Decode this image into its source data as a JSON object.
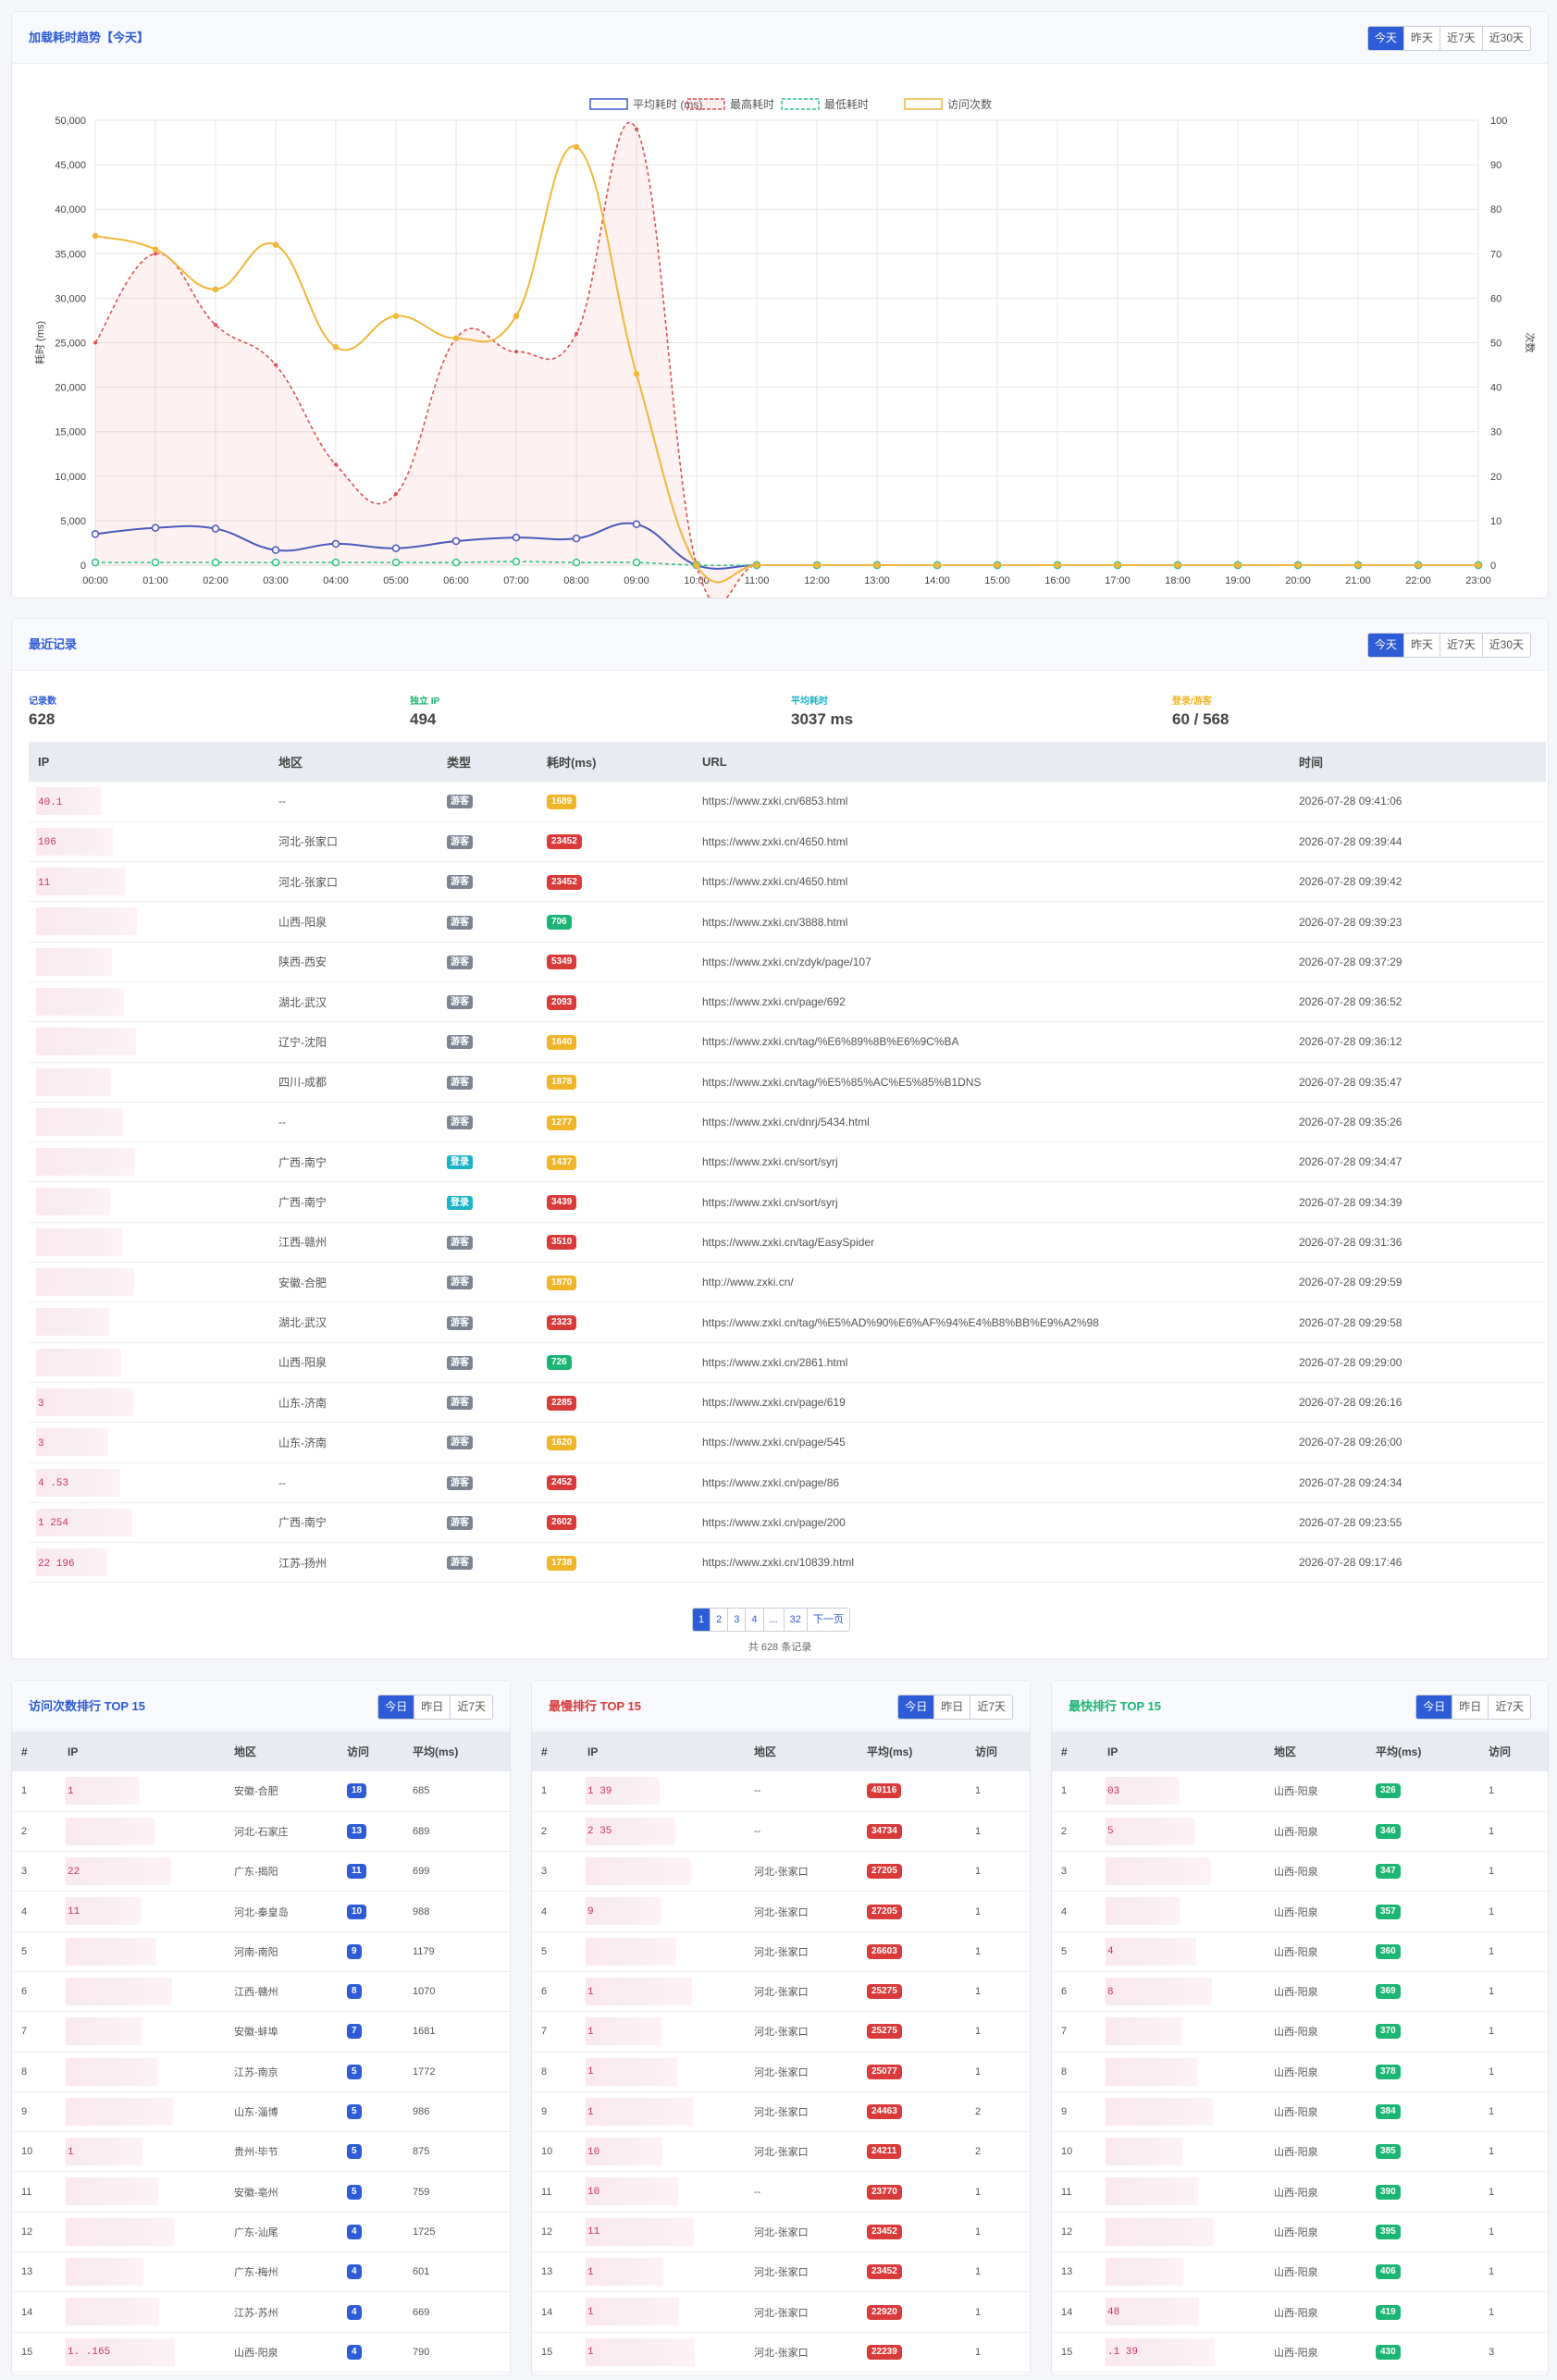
{
  "colors": {
    "accent": "#2e5bd6",
    "red": "#d93a3a",
    "yellow": "#f1b52a",
    "green": "#1cb574",
    "teal": "#1bb3c8"
  },
  "trend": {
    "title": "加载耗时趋势【今天】",
    "range_buttons": [
      "今天",
      "昨天",
      "近7天",
      "近30天"
    ],
    "active_range": "今天"
  },
  "chart_data": {
    "type": "line",
    "x": [
      "00:00",
      "01:00",
      "02:00",
      "03:00",
      "04:00",
      "05:00",
      "06:00",
      "07:00",
      "08:00",
      "09:00",
      "10:00",
      "11:00",
      "12:00",
      "13:00",
      "14:00",
      "15:00",
      "16:00",
      "17:00",
      "18:00",
      "19:00",
      "20:00",
      "21:00",
      "22:00",
      "23:00"
    ],
    "ylabel": "耗时 (ms)",
    "y2label": "次数",
    "ylim": [
      0,
      50000
    ],
    "y2lim": [
      0,
      100
    ],
    "yticks": [
      "0",
      "5,000",
      "10,000",
      "15,000",
      "20,000",
      "25,000",
      "30,000",
      "35,000",
      "40,000",
      "45,000",
      "50,000"
    ],
    "y2ticks": [
      "0",
      "10",
      "20",
      "30",
      "40",
      "50",
      "60",
      "70",
      "80",
      "90",
      "100"
    ],
    "grid": true,
    "legend_position": "top-center",
    "series": [
      {
        "name": "平均耗时 (ms)",
        "axis": "left",
        "style": "solid",
        "color": "#3d5cc7",
        "values": [
          3500,
          4200,
          4100,
          1700,
          2400,
          1900,
          2700,
          3100,
          3000,
          4600,
          0,
          0,
          0,
          0,
          0,
          0,
          0,
          0,
          0,
          0,
          0,
          0,
          0,
          0
        ]
      },
      {
        "name": "最高耗时",
        "axis": "left",
        "style": "dashed",
        "fill": true,
        "color": "#e05050",
        "values": [
          25000,
          35000,
          27000,
          22500,
          11300,
          8000,
          25500,
          24000,
          26000,
          49000,
          0,
          0,
          0,
          0,
          0,
          0,
          0,
          0,
          0,
          0,
          0,
          0,
          0,
          0
        ]
      },
      {
        "name": "最低耗时",
        "axis": "left",
        "style": "dashed",
        "color": "#2ec48a",
        "values": [
          300,
          300,
          300,
          300,
          300,
          300,
          300,
          400,
          300,
          300,
          0,
          0,
          0,
          0,
          0,
          0,
          0,
          0,
          0,
          0,
          0,
          0,
          0,
          0
        ]
      },
      {
        "name": "访问次数",
        "axis": "right",
        "style": "solid",
        "color": "#f2b63a",
        "values": [
          74,
          71,
          62,
          72,
          49,
          56,
          51,
          56,
          94,
          43,
          0,
          0,
          0,
          0,
          0,
          0,
          0,
          0,
          0,
          0,
          0,
          0,
          0,
          0
        ]
      }
    ]
  },
  "recent": {
    "title": "最近记录",
    "range_buttons": [
      "今天",
      "昨天",
      "近7天",
      "近30天"
    ],
    "stats": [
      {
        "label": "记录数",
        "value": "628",
        "color": "#2e5bd6"
      },
      {
        "label": "独立 IP",
        "value": "494",
        "color": "#1cb574"
      },
      {
        "label": "平均耗时",
        "value": "3037 ms",
        "color": "#1bb3c8"
      },
      {
        "label": "登录/游客",
        "value": "60 / 568",
        "color": "#f1b52a"
      }
    ],
    "columns": [
      "IP",
      "地区",
      "类型",
      "耗时(ms)",
      "URL",
      "时间"
    ],
    "rows": [
      {
        "ip": "40.1",
        "region": "--",
        "type": "游客",
        "ms": "1689",
        "lvl": "yellow",
        "url": "https://www.zxki.cn/6853.html",
        "time": "2026-07-28 09:41:06"
      },
      {
        "ip": "106",
        "region": "河北-张家口",
        "type": "游客",
        "ms": "23452",
        "lvl": "red",
        "url": "https://www.zxki.cn/4650.html",
        "time": "2026-07-28 09:39:44"
      },
      {
        "ip": "11",
        "region": "河北-张家口",
        "type": "游客",
        "ms": "23452",
        "lvl": "red",
        "url": "https://www.zxki.cn/4650.html",
        "time": "2026-07-28 09:39:42"
      },
      {
        "ip": "",
        "region": "山西-阳泉",
        "type": "游客",
        "ms": "706",
        "lvl": "green",
        "url": "https://www.zxki.cn/3888.html",
        "time": "2026-07-28 09:39:23"
      },
      {
        "ip": "",
        "region": "陕西-西安",
        "type": "游客",
        "ms": "5349",
        "lvl": "red",
        "url": "https://www.zxki.cn/zdyk/page/107",
        "time": "2026-07-28 09:37:29"
      },
      {
        "ip": "",
        "region": "湖北-武汉",
        "type": "游客",
        "ms": "2093",
        "lvl": "red",
        "url": "https://www.zxki.cn/page/692",
        "time": "2026-07-28 09:36:52"
      },
      {
        "ip": "",
        "region": "辽宁-沈阳",
        "type": "游客",
        "ms": "1640",
        "lvl": "yellow",
        "url": "https://www.zxki.cn/tag/%E6%89%8B%E6%9C%BA",
        "time": "2026-07-28 09:36:12"
      },
      {
        "ip": "",
        "region": "四川-成都",
        "type": "游客",
        "ms": "1878",
        "lvl": "yellow",
        "url": "https://www.zxki.cn/tag/%E5%85%AC%E5%85%B1DNS",
        "time": "2026-07-28 09:35:47"
      },
      {
        "ip": "",
        "region": "--",
        "type": "游客",
        "ms": "1277",
        "lvl": "yellow",
        "url": "https://www.zxki.cn/dnrj/5434.html",
        "time": "2026-07-28 09:35:26"
      },
      {
        "ip": "",
        "region": "广西-南宁",
        "type": "登录",
        "ms": "1437",
        "lvl": "yellow",
        "url": "https://www.zxki.cn/sort/syrj",
        "time": "2026-07-28 09:34:47"
      },
      {
        "ip": "",
        "region": "广西-南宁",
        "type": "登录",
        "ms": "3439",
        "lvl": "red",
        "url": "https://www.zxki.cn/sort/syrj",
        "time": "2026-07-28 09:34:39"
      },
      {
        "ip": "",
        "region": "江西-赣州",
        "type": "游客",
        "ms": "3510",
        "lvl": "red",
        "url": "https://www.zxki.cn/tag/EasySpider",
        "time": "2026-07-28 09:31:36"
      },
      {
        "ip": "",
        "region": "安徽-合肥",
        "type": "游客",
        "ms": "1870",
        "lvl": "yellow",
        "url": "http://www.zxki.cn/",
        "time": "2026-07-28 09:29:59"
      },
      {
        "ip": "",
        "region": "湖北-武汉",
        "type": "游客",
        "ms": "2323",
        "lvl": "red",
        "url": "https://www.zxki.cn/tag/%E5%AD%90%E6%AF%94%E4%B8%BB%E9%A2%98",
        "time": "2026-07-28 09:29:58"
      },
      {
        "ip": "",
        "region": "山西-阳泉",
        "type": "游客",
        "ms": "726",
        "lvl": "green",
        "url": "https://www.zxki.cn/2861.html",
        "time": "2026-07-28 09:29:00"
      },
      {
        "ip": "3",
        "region": "山东-济南",
        "type": "游客",
        "ms": "2285",
        "lvl": "red",
        "url": "https://www.zxki.cn/page/619",
        "time": "2026-07-28 09:26:16"
      },
      {
        "ip": "3",
        "region": "山东-济南",
        "type": "游客",
        "ms": "1620",
        "lvl": "yellow",
        "url": "https://www.zxki.cn/page/545",
        "time": "2026-07-28 09:26:00"
      },
      {
        "ip": "4 .53",
        "region": "--",
        "type": "游客",
        "ms": "2452",
        "lvl": "red",
        "url": "https://www.zxki.cn/page/86",
        "time": "2026-07-28 09:24:34"
      },
      {
        "ip": "1 254",
        "region": "广西-南宁",
        "type": "游客",
        "ms": "2602",
        "lvl": "red",
        "url": "https://www.zxki.cn/page/200",
        "time": "2026-07-28 09:23:55"
      },
      {
        "ip": "22 196",
        "region": "江苏-扬州",
        "type": "游客",
        "ms": "1738",
        "lvl": "yellow",
        "url": "https://www.zxki.cn/10839.html",
        "time": "2026-07-28 09:17:46"
      }
    ],
    "pagination": {
      "pages": [
        "1",
        "2",
        "3",
        "4",
        "...",
        "32",
        "下一页"
      ],
      "total": "共 628 条记录"
    }
  },
  "rank_visits": {
    "title": "访问次数排行 TOP 15",
    "buttons": [
      "今日",
      "昨日",
      "近7天"
    ],
    "columns": [
      "#",
      "IP",
      "地区",
      "访问",
      "平均(ms)"
    ],
    "rows": [
      {
        "n": "1",
        "ip": "1",
        "region": "安徽-合肥",
        "count": "18",
        "avg": "685"
      },
      {
        "n": "2",
        "ip": "",
        "region": "河北-石家庄",
        "count": "13",
        "avg": "689"
      },
      {
        "n": "3",
        "ip": "22",
        "region": "广东-揭阳",
        "count": "11",
        "avg": "699"
      },
      {
        "n": "4",
        "ip": "11",
        "region": "河北-秦皇岛",
        "count": "10",
        "avg": "988"
      },
      {
        "n": "5",
        "ip": "",
        "region": "河南-南阳",
        "count": "9",
        "avg": "1179"
      },
      {
        "n": "6",
        "ip": "",
        "region": "江西-赣州",
        "count": "8",
        "avg": "1070"
      },
      {
        "n": "7",
        "ip": "",
        "region": "安徽-蚌埠",
        "count": "7",
        "avg": "1681"
      },
      {
        "n": "8",
        "ip": "",
        "region": "江苏-南京",
        "count": "5",
        "avg": "1772"
      },
      {
        "n": "9",
        "ip": "",
        "region": "山东-淄博",
        "count": "5",
        "avg": "986"
      },
      {
        "n": "10",
        "ip": "1",
        "region": "贵州-毕节",
        "count": "5",
        "avg": "875"
      },
      {
        "n": "11",
        "ip": "",
        "region": "安徽-亳州",
        "count": "5",
        "avg": "759"
      },
      {
        "n": "12",
        "ip": "",
        "region": "广东-汕尾",
        "count": "4",
        "avg": "1725"
      },
      {
        "n": "13",
        "ip": "",
        "region": "广东-梅州",
        "count": "4",
        "avg": "601"
      },
      {
        "n": "14",
        "ip": "",
        "region": "江苏-苏州",
        "count": "4",
        "avg": "669"
      },
      {
        "n": "15",
        "ip": "1. .165",
        "region": "山西-阳泉",
        "count": "4",
        "avg": "790"
      }
    ]
  },
  "rank_slow": {
    "title": "最慢排行 TOP 15",
    "buttons": [
      "今日",
      "昨日",
      "近7天"
    ],
    "columns": [
      "#",
      "IP",
      "地区",
      "平均(ms)",
      "访问"
    ],
    "rows": [
      {
        "n": "1",
        "ip": "1 39",
        "region": "--",
        "avg": "49116",
        "count": "1"
      },
      {
        "n": "2",
        "ip": "2 35",
        "region": "--",
        "avg": "34734",
        "count": "1"
      },
      {
        "n": "3",
        "ip": "",
        "region": "河北-张家口",
        "avg": "27205",
        "count": "1"
      },
      {
        "n": "4",
        "ip": "9",
        "region": "河北-张家口",
        "avg": "27205",
        "count": "1"
      },
      {
        "n": "5",
        "ip": "",
        "region": "河北-张家口",
        "avg": "26603",
        "count": "1"
      },
      {
        "n": "6",
        "ip": "1",
        "region": "河北-张家口",
        "avg": "25275",
        "count": "1"
      },
      {
        "n": "7",
        "ip": "1",
        "region": "河北-张家口",
        "avg": "25275",
        "count": "1"
      },
      {
        "n": "8",
        "ip": "1",
        "region": "河北-张家口",
        "avg": "25077",
        "count": "1"
      },
      {
        "n": "9",
        "ip": "1",
        "region": "河北-张家口",
        "avg": "24463",
        "count": "2"
      },
      {
        "n": "10",
        "ip": "10",
        "region": "河北-张家口",
        "avg": "24211",
        "count": "2"
      },
      {
        "n": "11",
        "ip": "10",
        "region": "--",
        "avg": "23770",
        "count": "1"
      },
      {
        "n": "12",
        "ip": "11",
        "region": "河北-张家口",
        "avg": "23452",
        "count": "1"
      },
      {
        "n": "13",
        "ip": "1",
        "region": "河北-张家口",
        "avg": "23452",
        "count": "1"
      },
      {
        "n": "14",
        "ip": "1",
        "region": "河北-张家口",
        "avg": "22920",
        "count": "1"
      },
      {
        "n": "15",
        "ip": "1",
        "region": "河北-张家口",
        "avg": "22239",
        "count": "1"
      }
    ]
  },
  "rank_fast": {
    "title": "最快排行 TOP 15",
    "buttons": [
      "今日",
      "昨日",
      "近7天"
    ],
    "columns": [
      "#",
      "IP",
      "地区",
      "平均(ms)",
      "访问"
    ],
    "rows": [
      {
        "n": "1",
        "ip": "03",
        "region": "山西-阳泉",
        "avg": "326",
        "count": "1"
      },
      {
        "n": "2",
        "ip": "5",
        "region": "山西-阳泉",
        "avg": "346",
        "count": "1"
      },
      {
        "n": "3",
        "ip": "",
        "region": "山西-阳泉",
        "avg": "347",
        "count": "1"
      },
      {
        "n": "4",
        "ip": "",
        "region": "山西-阳泉",
        "avg": "357",
        "count": "1"
      },
      {
        "n": "5",
        "ip": "4",
        "region": "山西-阳泉",
        "avg": "360",
        "count": "1"
      },
      {
        "n": "6",
        "ip": "8",
        "region": "山西-阳泉",
        "avg": "369",
        "count": "1"
      },
      {
        "n": "7",
        "ip": "",
        "region": "山西-阳泉",
        "avg": "370",
        "count": "1"
      },
      {
        "n": "8",
        "ip": "",
        "region": "山西-阳泉",
        "avg": "378",
        "count": "1"
      },
      {
        "n": "9",
        "ip": "",
        "region": "山西-阳泉",
        "avg": "384",
        "count": "1"
      },
      {
        "n": "10",
        "ip": "",
        "region": "山西-阳泉",
        "avg": "385",
        "count": "1"
      },
      {
        "n": "11",
        "ip": "",
        "region": "山西-阳泉",
        "avg": "390",
        "count": "1"
      },
      {
        "n": "12",
        "ip": "",
        "region": "山西-阳泉",
        "avg": "395",
        "count": "1"
      },
      {
        "n": "13",
        "ip": "",
        "region": "山西-阳泉",
        "avg": "406",
        "count": "1"
      },
      {
        "n": "14",
        "ip": "48",
        "region": "山西-阳泉",
        "avg": "419",
        "count": "1"
      },
      {
        "n": "15",
        "ip": ".1 39",
        "region": "山西-阳泉",
        "avg": "430",
        "count": "3"
      }
    ]
  }
}
